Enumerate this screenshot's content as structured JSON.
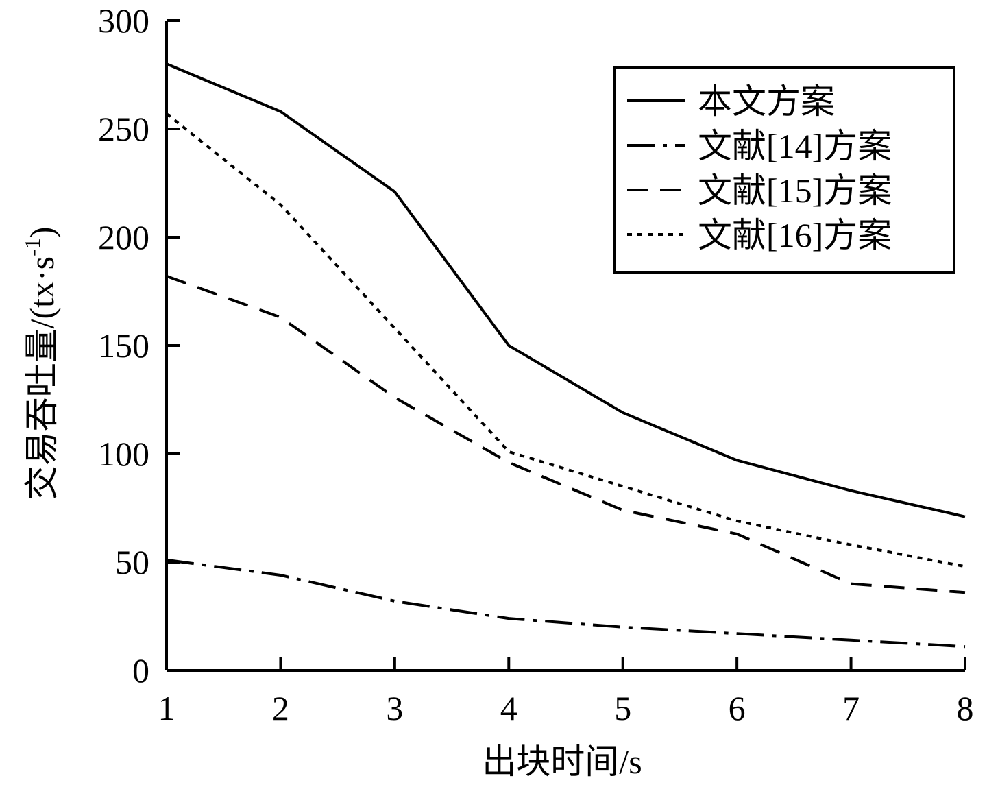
{
  "chart_data": {
    "type": "line",
    "title": "",
    "xlabel": "出块时间/s",
    "ylabel": "交易吞吐量/(tx·s",
    "ylabel_superscript": "-1",
    "ylabel_close": ")",
    "x": [
      1,
      2,
      3,
      4,
      5,
      6,
      7,
      8
    ],
    "xlim": [
      1,
      8
    ],
    "ylim": [
      0,
      300
    ],
    "xticks": [
      1,
      2,
      3,
      4,
      5,
      6,
      7,
      8
    ],
    "yticks": [
      0,
      50,
      100,
      150,
      200,
      250,
      300
    ],
    "grid": false,
    "legend_position": "top-right",
    "series": [
      {
        "name": "本文方案",
        "style": "solid",
        "color": "#000000",
        "values": [
          280,
          258,
          221,
          150,
          119,
          97,
          83,
          71
        ]
      },
      {
        "name": "文献[14]方案",
        "style": "dashdot",
        "color": "#000000",
        "values": [
          51,
          44,
          32,
          24,
          20,
          17,
          14,
          11
        ]
      },
      {
        "name": "文献[15]方案",
        "style": "dashed",
        "color": "#000000",
        "values": [
          182,
          163,
          126,
          96,
          74,
          63,
          40,
          36
        ]
      },
      {
        "name": "文献[16]方案",
        "style": "dotted",
        "color": "#000000",
        "values": [
          257,
          215,
          158,
          101,
          85,
          69,
          58,
          48
        ]
      }
    ]
  }
}
